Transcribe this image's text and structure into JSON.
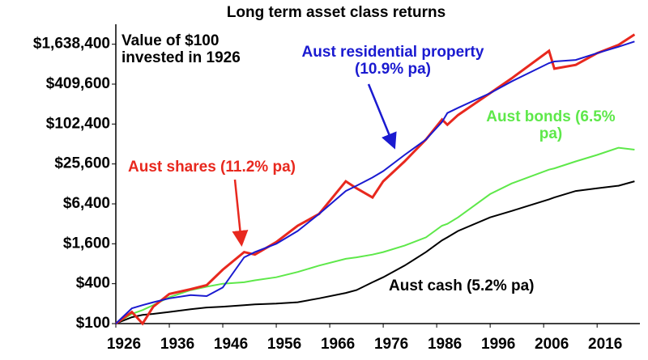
{
  "chart_data": {
    "type": "line",
    "title": "Long term asset class returns",
    "subtitle": "Value of $100 invested in 1926",
    "log_scale": true,
    "grid": false,
    "x": [
      1926,
      1929,
      1931,
      1933,
      1936,
      1940,
      1943,
      1946,
      1950,
      1952,
      1956,
      1960,
      1964,
      1969,
      1971,
      1974,
      1976,
      1980,
      1984,
      1987,
      1988,
      1990,
      1996,
      2000,
      2007,
      2008,
      2012,
      2016,
      2020,
      2023
    ],
    "series": [
      {
        "name": "Aust shares (11.2% pa)",
        "color": "#e8281e",
        "values": [
          100,
          150,
          100,
          180,
          280,
          330,
          380,
          650,
          1200,
          1100,
          1700,
          3000,
          4500,
          14000,
          11000,
          8000,
          14000,
          28000,
          60000,
          120000,
          100000,
          140000,
          300000,
          500000,
          1300000,
          700000,
          800000,
          1200000,
          1600000,
          2300000
        ]
      },
      {
        "name": "Aust residential property (10.9% pa)",
        "color": "#1a1ad0",
        "values": [
          100,
          170,
          190,
          210,
          240,
          270,
          260,
          350,
          1000,
          1200,
          1600,
          2500,
          4500,
          10000,
          12000,
          16000,
          20000,
          35000,
          60000,
          110000,
          150000,
          180000,
          300000,
          450000,
          850000,
          900000,
          950000,
          1200000,
          1500000,
          1800000
        ]
      },
      {
        "name": "Aust bonds (6.5% pa)",
        "color": "#5ee84a",
        "values": [
          100,
          140,
          160,
          190,
          250,
          320,
          360,
          400,
          420,
          450,
          500,
          600,
          750,
          950,
          1000,
          1100,
          1200,
          1500,
          2000,
          3000,
          3200,
          4000,
          9000,
          13000,
          21000,
          22000,
          28000,
          35000,
          45000,
          42000
        ]
      },
      {
        "name": "Aust cash (5.2% pa)",
        "color": "#000000",
        "values": [
          100,
          125,
          135,
          140,
          150,
          165,
          175,
          180,
          190,
          195,
          200,
          210,
          240,
          290,
          320,
          420,
          500,
          750,
          1200,
          1800,
          2000,
          2500,
          4000,
          5000,
          7500,
          8000,
          10000,
          11000,
          12000,
          14000
        ]
      }
    ],
    "xlim": [
      1926,
      2024
    ],
    "xticks": [
      1926,
      1936,
      1946,
      1956,
      1966,
      1976,
      1986,
      1996,
      2006,
      2016
    ],
    "ylim": [
      100,
      3276800
    ],
    "yticks": [
      {
        "value": 100,
        "label": "$100"
      },
      {
        "value": 400,
        "label": "$400"
      },
      {
        "value": 1600,
        "label": "$1,600"
      },
      {
        "value": 6400,
        "label": "$6,400"
      },
      {
        "value": 25600,
        "label": "$25,600"
      },
      {
        "value": 102400,
        "label": "$102,400"
      },
      {
        "value": 409600,
        "label": "$409,600"
      },
      {
        "value": 1638400,
        "label": "$1,638,400"
      }
    ]
  }
}
